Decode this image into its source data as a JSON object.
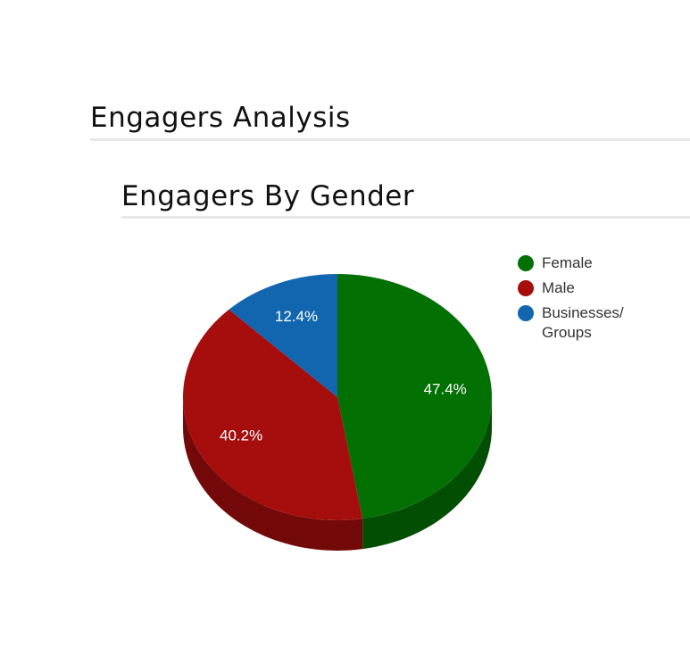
{
  "header": {
    "title": "Engagers Analysis"
  },
  "chart_data": {
    "type": "pie",
    "title": "Engagers By Gender",
    "categories": [
      "Female",
      "Male",
      "Businesses/ Groups"
    ],
    "values": [
      47.4,
      40.2,
      12.4
    ],
    "value_labels": [
      "47.4%",
      "40.2%",
      "12.4%"
    ],
    "colors": [
      "#037003",
      "#a60d0d",
      "#1266b0"
    ],
    "legend": "right"
  }
}
